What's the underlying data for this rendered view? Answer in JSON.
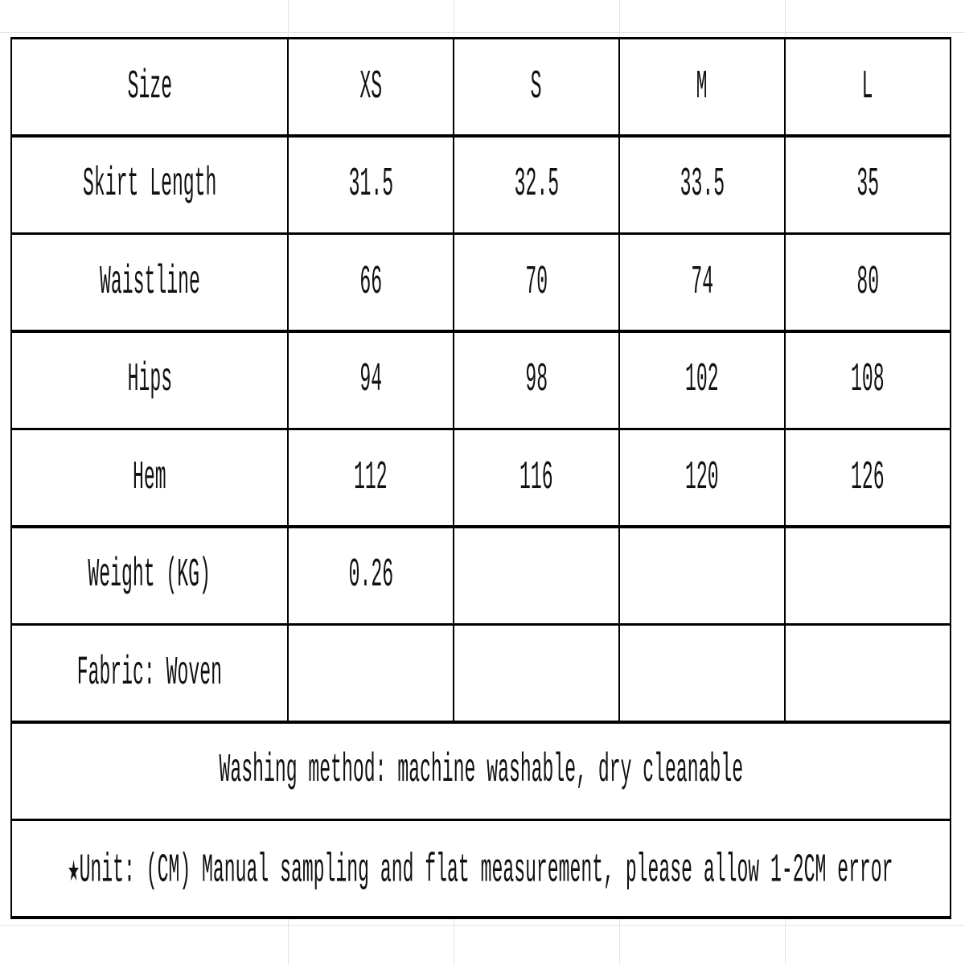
{
  "table": {
    "header": [
      "Size",
      "XS",
      "S",
      "M",
      "L"
    ],
    "rows": [
      [
        "Skirt Length",
        "31.5",
        "32.5",
        "33.5",
        "35"
      ],
      [
        "Waistline",
        "66",
        "70",
        "74",
        "80"
      ],
      [
        "Hips",
        "94",
        "98",
        "102",
        "108"
      ],
      [
        "Hem",
        "112",
        "116",
        "120",
        "126"
      ],
      [
        "Weight (KG)",
        "0.26"
      ],
      [
        "Fabric: Woven"
      ]
    ]
  },
  "notes": [
    "Washing method: machine washable, dry cleanable",
    "★Unit: (CM) Manual sampling and flat measurement, please allow 1-2CM error"
  ]
}
